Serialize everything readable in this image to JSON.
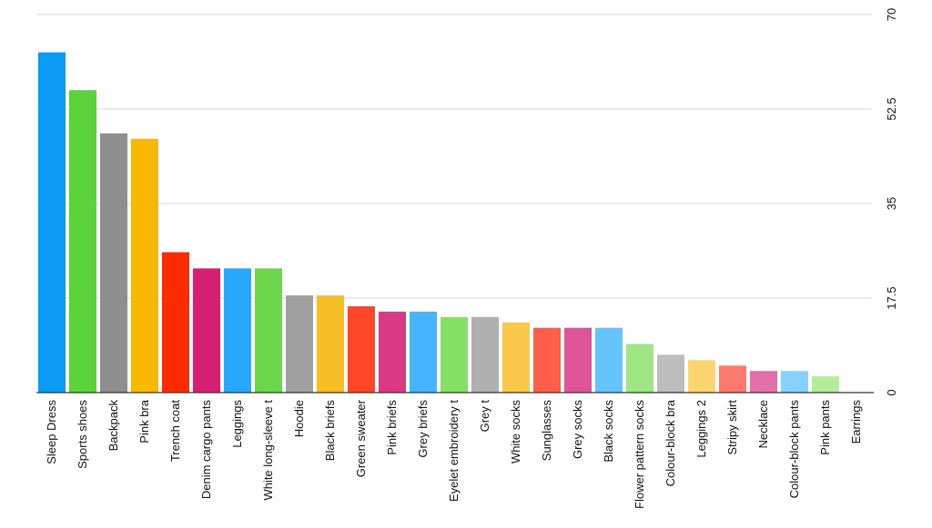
{
  "chart_data": {
    "type": "bar",
    "title": "",
    "xlabel": "",
    "ylabel": "",
    "ylim": [
      0,
      70
    ],
    "yticks": [
      "0",
      "17.5",
      "35",
      "52.5",
      "70"
    ],
    "y_axis_side": "right",
    "grid": true,
    "categories": [
      "Sleep Dress",
      "Sports shoes",
      "Backpack",
      "Pink bra",
      "Trench coat",
      "Denim cargo pants",
      "Leggings",
      "White long-sleeve t",
      "Hoodie",
      "Black briefs",
      "Green sweater",
      "Pink briefs",
      "Grey briefs",
      "Eyelet embroidery t",
      "Grey t",
      "White socks",
      "Sunglasses",
      "Grey socks",
      "Black socks",
      "Flower pattern socks",
      "Colour-block bra",
      "Leggings 2",
      "Stripy skirt",
      "Necklace",
      "Colour-block pants",
      "Pink pants",
      "Earrings"
    ],
    "values": [
      63,
      56,
      48,
      47,
      26,
      23,
      23,
      23,
      18,
      18,
      16,
      15,
      15,
      14,
      14,
      13,
      12,
      12,
      12,
      9,
      7,
      6,
      5,
      4,
      4,
      3,
      0
    ],
    "colors": [
      "#0a9cf5",
      "#5ad33a",
      "#8e8e8e",
      "#f9b800",
      "#fe2a00",
      "#d41f74",
      "#27a8fd",
      "#6bd64a",
      "#a0a0a0",
      "#f8be26",
      "#fe4727",
      "#d83a86",
      "#44b5fe",
      "#86e066",
      "#b0b0b0",
      "#f9c84a",
      "#fe5f4a",
      "#dd5598",
      "#66c3fe",
      "#9fe687",
      "#bdbdbd",
      "#fad46e",
      "#fe7a6d",
      "#e270a8",
      "#88d0fe",
      "#b5eb9d",
      "#cccccc"
    ]
  }
}
